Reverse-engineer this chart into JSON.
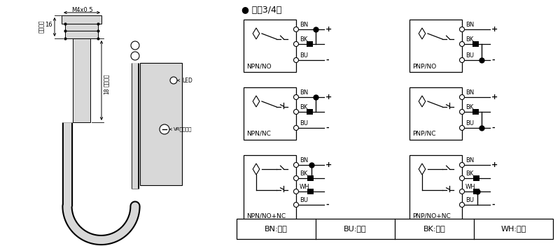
{
  "bg_color": "#ffffff",
  "title": "直八3/4线",
  "title_bullet": "● 直八3/4线",
  "legend_items": [
    "BN:棕色",
    "BU:兰色",
    "BK:黑色",
    "WH:白色"
  ],
  "circuits_left": [
    "NPN/NO",
    "NPN/NC",
    "NPN/NO+NC"
  ],
  "circuits_right": [
    "PNP/NO",
    "PNP/NC",
    "PNP/NO+NC"
  ],
  "dim_m4": "M4x0.5",
  "dim_16": "16",
  "dim_18": "18",
  "label_jiance": "检测距离",
  "label_anzhuang": "安装螺母",
  "led_text": "LED",
  "vr_text": "VR距离调节"
}
